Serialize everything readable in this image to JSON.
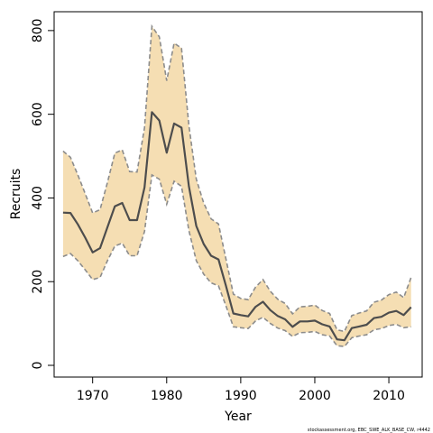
{
  "chart_data": {
    "type": "line",
    "xlabel": "Year",
    "ylabel": "Recruits",
    "xlim": [
      1964.8,
      2014.5
    ],
    "ylim": [
      -28,
      845
    ],
    "x_ticks": [
      1970,
      1980,
      1990,
      2000,
      2010
    ],
    "y_ticks": [
      0,
      200,
      400,
      600,
      800
    ],
    "grid": false,
    "band_color": "#f5deb3",
    "line_color": "#4d4d4d",
    "bound_color": "#8c8c8c",
    "x": [
      1966,
      1967,
      1968,
      1969,
      1970,
      1971,
      1972,
      1973,
      1974,
      1975,
      1976,
      1977,
      1978,
      1979,
      1980,
      1981,
      1982,
      1983,
      1984,
      1985,
      1986,
      1987,
      1988,
      1989,
      1990,
      1991,
      1992,
      1993,
      1994,
      1995,
      1996,
      1997,
      1998,
      1999,
      2000,
      2001,
      2002,
      2003,
      2004,
      2005,
      2006,
      2007,
      2008,
      2009,
      2010,
      2011,
      2012,
      2013
    ],
    "series": [
      {
        "values": [
          365,
          364,
          337,
          305,
          270,
          280,
          330,
          380,
          388,
          347,
          347,
          425,
          605,
          585,
          508,
          578,
          568,
          428,
          333,
          290,
          262,
          253,
          190,
          124,
          120,
          117,
          140,
          152,
          132,
          118,
          110,
          92,
          105,
          105,
          107,
          98,
          93,
          62,
          60,
          89,
          93,
          97,
          113,
          116,
          126,
          130,
          120,
          139
        ]
      },
      {
        "values": [
          260,
          267,
          250,
          228,
          205,
          210,
          250,
          285,
          292,
          262,
          262,
          320,
          455,
          445,
          385,
          440,
          428,
          322,
          250,
          218,
          197,
          190,
          142,
          92,
          90,
          88,
          106,
          115,
          100,
          89,
          83,
          69,
          78,
          79,
          81,
          73,
          70,
          47,
          45,
          66,
          70,
          73,
          85,
          88,
          95,
          98,
          90,
          92
        ]
      },
      {
        "values": [
          512,
          497,
          455,
          410,
          364,
          372,
          437,
          507,
          515,
          463,
          462,
          568,
          810,
          785,
          680,
          770,
          758,
          573,
          445,
          388,
          350,
          338,
          254,
          170,
          160,
          157,
          187,
          205,
          177,
          158,
          148,
          123,
          140,
          141,
          144,
          131,
          124,
          85,
          81,
          119,
          125,
          130,
          151,
          156,
          169,
          175,
          162,
          210
        ]
      }
    ]
  },
  "caption": "stockassessment.org, EBC_SWE_ALK_BASE_CW, r4442"
}
